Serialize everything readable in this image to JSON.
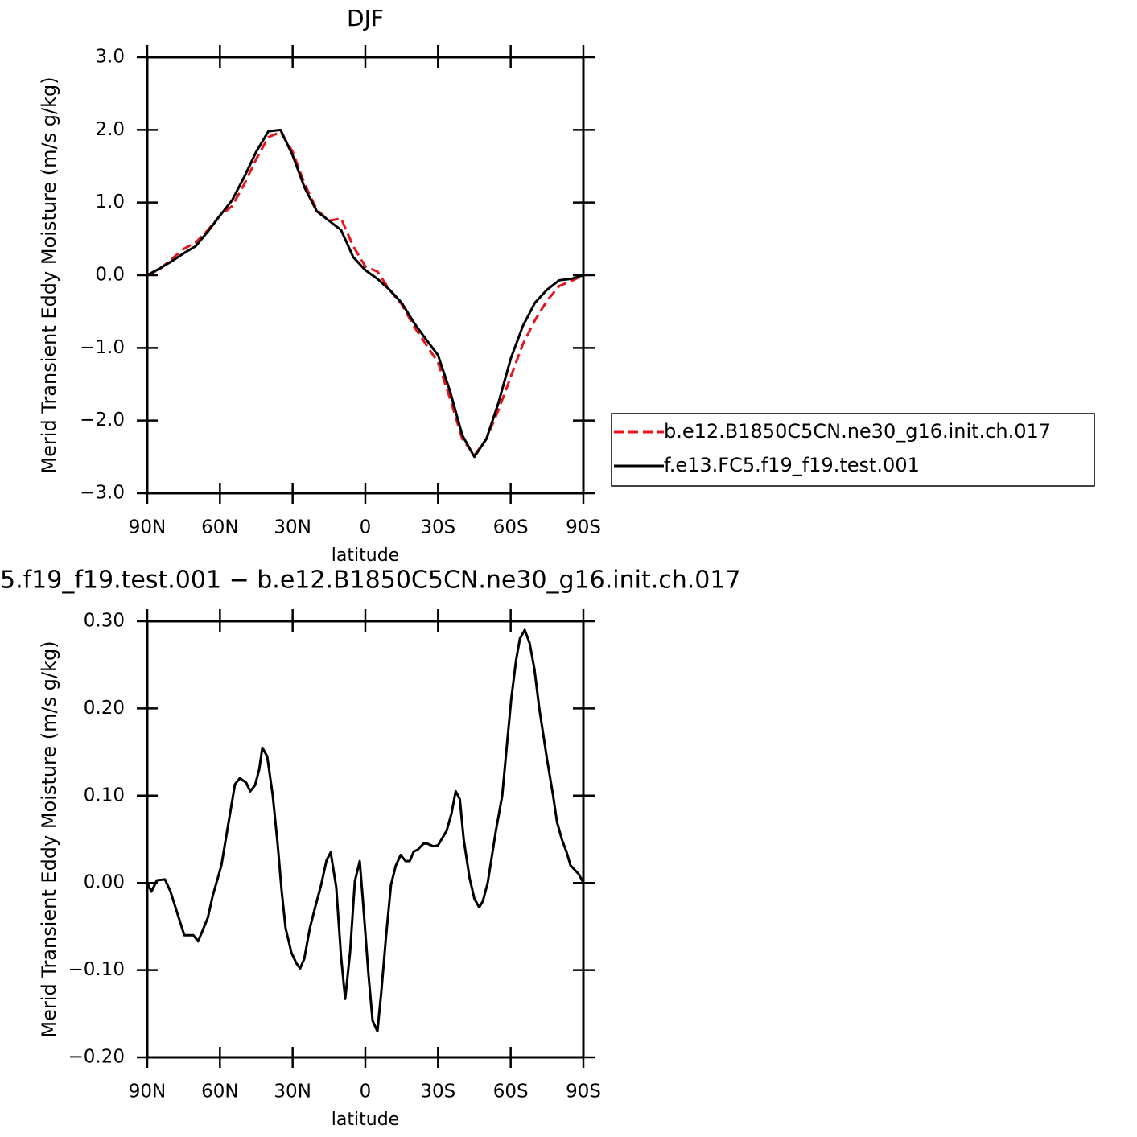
{
  "chart_data": [
    {
      "type": "line",
      "title": "DJF",
      "xlabel": "latitude",
      "ylabel": "Merid Transient Eddy Moisture (m/s g/kg)",
      "x": [
        90,
        85,
        80,
        75,
        70,
        65,
        60,
        55,
        50,
        45,
        40,
        35,
        30,
        25,
        20,
        15,
        10,
        5,
        0,
        -5,
        -10,
        -15,
        -20,
        -25,
        -30,
        -35,
        -40,
        -45,
        -50,
        -55,
        -60,
        -65,
        -70,
        -75,
        -80,
        -85,
        -90
      ],
      "series": [
        {
          "name": "b.e12.B1850C5CN.ne30_g16.init.ch.017",
          "color": "#e8141c",
          "dashed": true,
          "values": [
            0,
            0.08,
            0.22,
            0.36,
            0.45,
            0.62,
            0.82,
            0.95,
            1.25,
            1.6,
            1.9,
            1.97,
            1.7,
            1.25,
            0.9,
            0.75,
            0.78,
            0.4,
            0.12,
            0.05,
            -0.2,
            -0.4,
            -0.7,
            -0.95,
            -1.2,
            -1.7,
            -2.25,
            -2.48,
            -2.25,
            -1.85,
            -1.4,
            -0.95,
            -0.62,
            -0.35,
            -0.15,
            -0.08,
            0
          ]
        },
        {
          "name": "f.e13.FC5.f19_f19.test.001",
          "color": "#000000",
          "dashed": false,
          "values": [
            0,
            0.09,
            0.19,
            0.3,
            0.4,
            0.6,
            0.82,
            1.03,
            1.35,
            1.7,
            1.98,
            2.0,
            1.65,
            1.2,
            0.88,
            0.75,
            0.62,
            0.25,
            0.07,
            -0.05,
            -0.2,
            -0.38,
            -0.65,
            -0.88,
            -1.1,
            -1.6,
            -2.2,
            -2.5,
            -2.25,
            -1.75,
            -1.15,
            -0.7,
            -0.38,
            -0.2,
            -0.07,
            -0.05,
            0
          ]
        }
      ],
      "xlim": [
        90,
        -90
      ],
      "xticks": [
        {
          "value": 90,
          "label": "90N"
        },
        {
          "value": 60,
          "label": "60N"
        },
        {
          "value": 30,
          "label": "30N"
        },
        0,
        {
          "value": -30,
          "label": "30S"
        },
        {
          "value": -60,
          "label": "60S"
        },
        {
          "value": -90,
          "label": "90S"
        }
      ],
      "ylim": [
        -3,
        3
      ],
      "yticks": [
        {
          "value": -3,
          "label": "−3.0"
        },
        {
          "value": -2,
          "label": "−2.0"
        },
        {
          "value": -1,
          "label": "−1.0"
        },
        {
          "value": 0,
          "label": "0.0"
        },
        {
          "value": 1,
          "label": "1.0"
        },
        {
          "value": 2,
          "label": "2.0"
        },
        {
          "value": 3,
          "label": "3.0"
        }
      ],
      "legend": "right"
    },
    {
      "type": "line",
      "title": "5.f19_f19.test.001 − b.e12.B1850C5CN.ne30_g16.init.ch.017",
      "xlabel": "latitude",
      "ylabel": "Merid Transient Eddy Moisture (m/s g/kg)",
      "x": [
        90,
        88.3,
        86,
        82.7,
        80.4,
        77,
        74.7,
        71,
        69,
        65,
        63,
        59.4,
        57,
        53.8,
        51.8,
        49.2,
        47.5,
        45.5,
        43.8,
        42.5,
        40.5,
        38.2,
        36.2,
        34.5,
        32.9,
        30.5,
        28.5,
        26.9,
        25.2,
        22.9,
        20.9,
        18.3,
        16,
        14.3,
        12,
        10,
        8.3,
        6.3,
        4.3,
        2.3,
        1,
        -1.3,
        -3,
        -5,
        -6.6,
        -8.6,
        -10.6,
        -12.6,
        -14.6,
        -16.6,
        -18.3,
        -20,
        -21.6,
        -24,
        -25.6,
        -28,
        -30,
        -33.6,
        -35.6,
        -37.3,
        -39,
        -40.6,
        -43,
        -45,
        -47,
        -48.5,
        -50.5,
        -53.9,
        -56.5,
        -58.5,
        -60.2,
        -62.2,
        -63.8,
        -65.8,
        -67.8,
        -69.8,
        -71.8,
        -75.1,
        -77.5,
        -79.1,
        -81.1,
        -83.1,
        -84.7,
        -88.1,
        -90
      ],
      "series": [
        {
          "color": "#000000",
          "values": [
            0,
            -0.01,
            0.003,
            0.004,
            -0.01,
            -0.04,
            -0.06,
            -0.06,
            -0.067,
            -0.04,
            -0.015,
            0.02,
            0.06,
            0.113,
            0.12,
            0.115,
            0.105,
            0.112,
            0.13,
            0.155,
            0.145,
            0.1,
            0.045,
            -0.01,
            -0.052,
            -0.08,
            -0.092,
            -0.098,
            -0.087,
            -0.052,
            -0.03,
            -0.003,
            0.026,
            0.035,
            -0.005,
            -0.085,
            -0.133,
            -0.08,
            0.002,
            0.025,
            -0.02,
            -0.105,
            -0.158,
            -0.17,
            -0.125,
            -0.06,
            -0.002,
            0.02,
            0.032,
            0.025,
            0.025,
            0.036,
            0.038,
            0.045,
            0.045,
            0.042,
            0.043,
            0.06,
            0.08,
            0.105,
            0.096,
            0.05,
            0.006,
            -0.018,
            -0.028,
            -0.021,
            0,
            0.06,
            0.1,
            0.16,
            0.21,
            0.255,
            0.28,
            0.29,
            0.275,
            0.245,
            0.2,
            0.14,
            0.1,
            0.07,
            0.05,
            0.035,
            0.02,
            0.01,
            0
          ]
        }
      ],
      "xlim": [
        90,
        -90
      ],
      "xticks": [
        {
          "value": 90,
          "label": "90N"
        },
        {
          "value": 60,
          "label": "60N"
        },
        {
          "value": 30,
          "label": "30N"
        },
        0,
        {
          "value": -30,
          "label": "30S"
        },
        {
          "value": -60,
          "label": "60S"
        },
        {
          "value": -90,
          "label": "90S"
        }
      ],
      "ylim": [
        -0.2,
        0.3
      ],
      "yticks": [
        {
          "value": -0.2,
          "label": "−0.20"
        },
        {
          "value": -0.1,
          "label": "−0.10"
        },
        {
          "value": 0,
          "label": "0.00"
        },
        {
          "value": 0.1,
          "label": "0.10"
        },
        {
          "value": 0.2,
          "label": "0.20"
        },
        {
          "value": 0.3,
          "label": "0.30"
        }
      ]
    }
  ]
}
